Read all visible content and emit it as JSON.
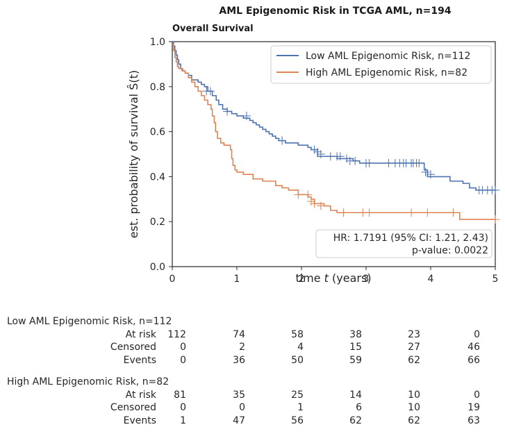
{
  "suptitle": "AML Epigenomic Risk in TCGA AML, n=194",
  "subtitle": "Overall Survival",
  "chart_data": {
    "type": "line",
    "subtype": "kaplan-meier step",
    "xlim": [
      0,
      5
    ],
    "ylim": [
      0,
      1
    ],
    "xticks": [
      "0",
      "1",
      "2",
      "3",
      "4",
      "5"
    ],
    "yticks": [
      "0.0",
      "0.2",
      "0.4",
      "0.6",
      "0.8",
      "1.0"
    ],
    "xlabel_pre": "time ",
    "xlabel_var": "t",
    "xlabel_post": " (years)",
    "ylabel": "est. probability of survival Ŝ(t)",
    "legend_position": "top-right",
    "grid": false,
    "series": [
      {
        "name": "Low AML Epigenomic Risk, n=112",
        "color": "#4c72b0",
        "x": [
          0,
          0.02,
          0.04,
          0.06,
          0.08,
          0.1,
          0.13,
          0.16,
          0.2,
          0.25,
          0.3,
          0.4,
          0.45,
          0.5,
          0.55,
          0.62,
          0.68,
          0.72,
          0.78,
          0.85,
          0.92,
          1.0,
          1.1,
          1.2,
          1.25,
          1.3,
          1.35,
          1.4,
          1.45,
          1.5,
          1.55,
          1.6,
          1.65,
          1.75,
          1.85,
          1.95,
          2.1,
          2.15,
          2.25,
          2.55,
          2.65,
          2.8,
          2.9,
          3.0,
          3.9,
          3.95,
          4.0,
          4.3,
          4.5,
          4.6,
          4.7,
          5.0
        ],
        "y": [
          1.0,
          0.98,
          0.96,
          0.94,
          0.92,
          0.9,
          0.88,
          0.87,
          0.86,
          0.85,
          0.83,
          0.82,
          0.81,
          0.8,
          0.78,
          0.76,
          0.74,
          0.72,
          0.7,
          0.69,
          0.68,
          0.67,
          0.66,
          0.65,
          0.64,
          0.63,
          0.62,
          0.61,
          0.6,
          0.59,
          0.58,
          0.57,
          0.56,
          0.55,
          0.55,
          0.54,
          0.53,
          0.52,
          0.49,
          0.48,
          0.48,
          0.47,
          0.46,
          0.46,
          0.43,
          0.4,
          0.4,
          0.38,
          0.37,
          0.35,
          0.34,
          0.34
        ],
        "censored_x": [
          0.53,
          0.59,
          0.85,
          1.15,
          1.7,
          2.2,
          2.25,
          2.3,
          2.45,
          2.55,
          2.6,
          2.7,
          2.75,
          2.83,
          3.0,
          3.05,
          3.35,
          3.45,
          3.52,
          3.58,
          3.62,
          3.7,
          3.73,
          3.78,
          3.82,
          3.92,
          4.0,
          4.75,
          4.8,
          4.88,
          4.95,
          5.0
        ],
        "censored_y": [
          0.78,
          0.78,
          0.69,
          0.67,
          0.56,
          0.52,
          0.51,
          0.5,
          0.49,
          0.49,
          0.49,
          0.48,
          0.47,
          0.47,
          0.46,
          0.46,
          0.46,
          0.46,
          0.46,
          0.46,
          0.46,
          0.46,
          0.46,
          0.46,
          0.46,
          0.42,
          0.41,
          0.34,
          0.34,
          0.34,
          0.34,
          0.34
        ]
      },
      {
        "name": "High AML Epigenomic Risk, n=82",
        "color": "#dd8452",
        "x": [
          0,
          0.02,
          0.04,
          0.06,
          0.08,
          0.1,
          0.15,
          0.2,
          0.25,
          0.3,
          0.35,
          0.4,
          0.45,
          0.5,
          0.55,
          0.6,
          0.62,
          0.65,
          0.67,
          0.7,
          0.75,
          0.8,
          0.9,
          0.92,
          0.94,
          0.97,
          1.0,
          1.1,
          1.25,
          1.4,
          1.6,
          1.7,
          1.8,
          1.95,
          2.1,
          2.15,
          2.2,
          2.35,
          2.45,
          2.55,
          4.45,
          5.0
        ],
        "y": [
          0.99,
          0.96,
          0.93,
          0.91,
          0.89,
          0.88,
          0.87,
          0.86,
          0.84,
          0.82,
          0.8,
          0.78,
          0.76,
          0.74,
          0.72,
          0.7,
          0.67,
          0.64,
          0.6,
          0.57,
          0.55,
          0.54,
          0.52,
          0.48,
          0.45,
          0.43,
          0.42,
          0.41,
          0.39,
          0.38,
          0.36,
          0.35,
          0.34,
          0.32,
          0.31,
          0.3,
          0.28,
          0.27,
          0.25,
          0.24,
          0.21,
          0.21
        ],
        "censored_x": [
          1.95,
          2.1,
          2.15,
          2.2,
          2.3,
          2.65,
          2.95,
          3.05,
          3.7,
          3.95,
          4.35,
          5.0
        ],
        "censored_y": [
          0.32,
          0.32,
          0.29,
          0.28,
          0.27,
          0.24,
          0.24,
          0.24,
          0.24,
          0.24,
          0.24,
          0.21
        ]
      }
    ],
    "annotation": {
      "line1": "HR: 1.7191 (95% CI: 1.21, 2.43)",
      "line2": "p-value: 0.0022"
    }
  },
  "risk_table": {
    "groups": [
      {
        "title": "Low AML Epigenomic Risk, n=112",
        "rows": [
          {
            "label": "At risk",
            "values": [
              "112",
              "74",
              "58",
              "38",
              "23",
              "0"
            ]
          },
          {
            "label": "Censored",
            "values": [
              "0",
              "2",
              "4",
              "15",
              "27",
              "46"
            ]
          },
          {
            "label": "Events",
            "values": [
              "0",
              "36",
              "50",
              "59",
              "62",
              "66"
            ]
          }
        ]
      },
      {
        "title": "High AML Epigenomic Risk, n=82",
        "rows": [
          {
            "label": "At risk",
            "values": [
              "81",
              "35",
              "25",
              "14",
              "10",
              "0"
            ]
          },
          {
            "label": "Censored",
            "values": [
              "0",
              "0",
              "1",
              "6",
              "10",
              "19"
            ]
          },
          {
            "label": "Events",
            "values": [
              "1",
              "47",
              "56",
              "62",
              "62",
              "63"
            ]
          }
        ]
      }
    ]
  }
}
